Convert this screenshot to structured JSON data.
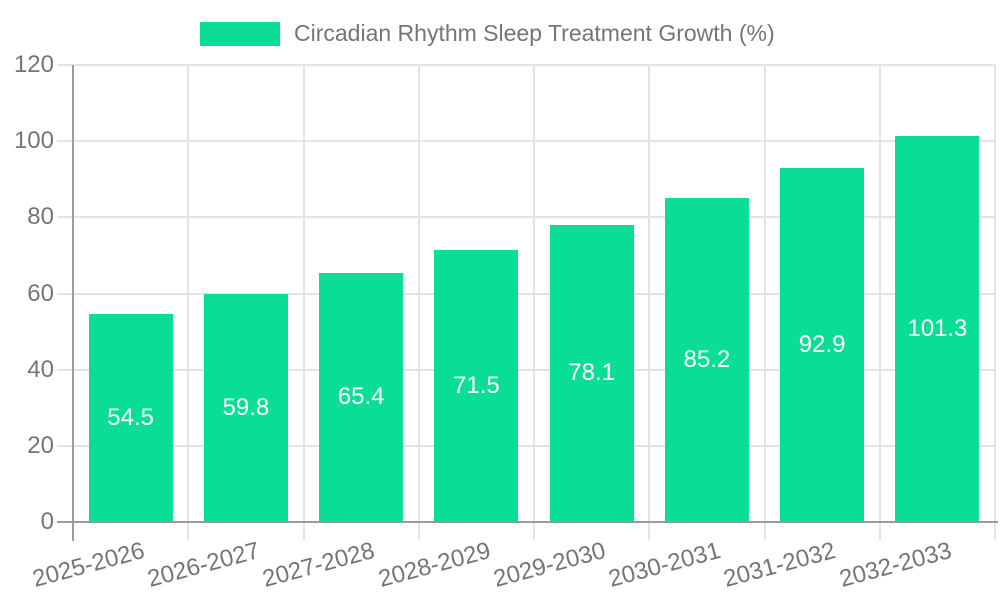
{
  "legend": {
    "label": "Circadian Rhythm Sleep Treatment Growth (%)"
  },
  "chart_data": {
    "type": "bar",
    "title": "Circadian Rhythm Sleep Treatment Growth (%)",
    "categories": [
      "2025-2026",
      "2026-2027",
      "2027-2028",
      "2028-2029",
      "2029-2030",
      "2030-2031",
      "2031-2032",
      "2032-2033"
    ],
    "values": [
      54.5,
      59.8,
      65.4,
      71.5,
      78.1,
      85.2,
      92.9,
      101.3
    ],
    "value_labels": [
      "54.5",
      "59.8",
      "65.4",
      "71.5",
      "78.1",
      "85.2",
      "92.9",
      "101.3"
    ],
    "xlabel": "",
    "ylabel": "",
    "ylim": [
      0,
      120
    ],
    "y_ticks": [
      0,
      20,
      40,
      60,
      80,
      100,
      120
    ],
    "y_tick_labels": [
      "0",
      "20",
      "40",
      "60",
      "80",
      "100",
      "120"
    ],
    "grid": true,
    "legend_position": "top",
    "x_label_rotation_deg": -15,
    "bar_color": "#0ade94",
    "value_label_color": "#ffffff",
    "axis_text_color": "#757575"
  }
}
